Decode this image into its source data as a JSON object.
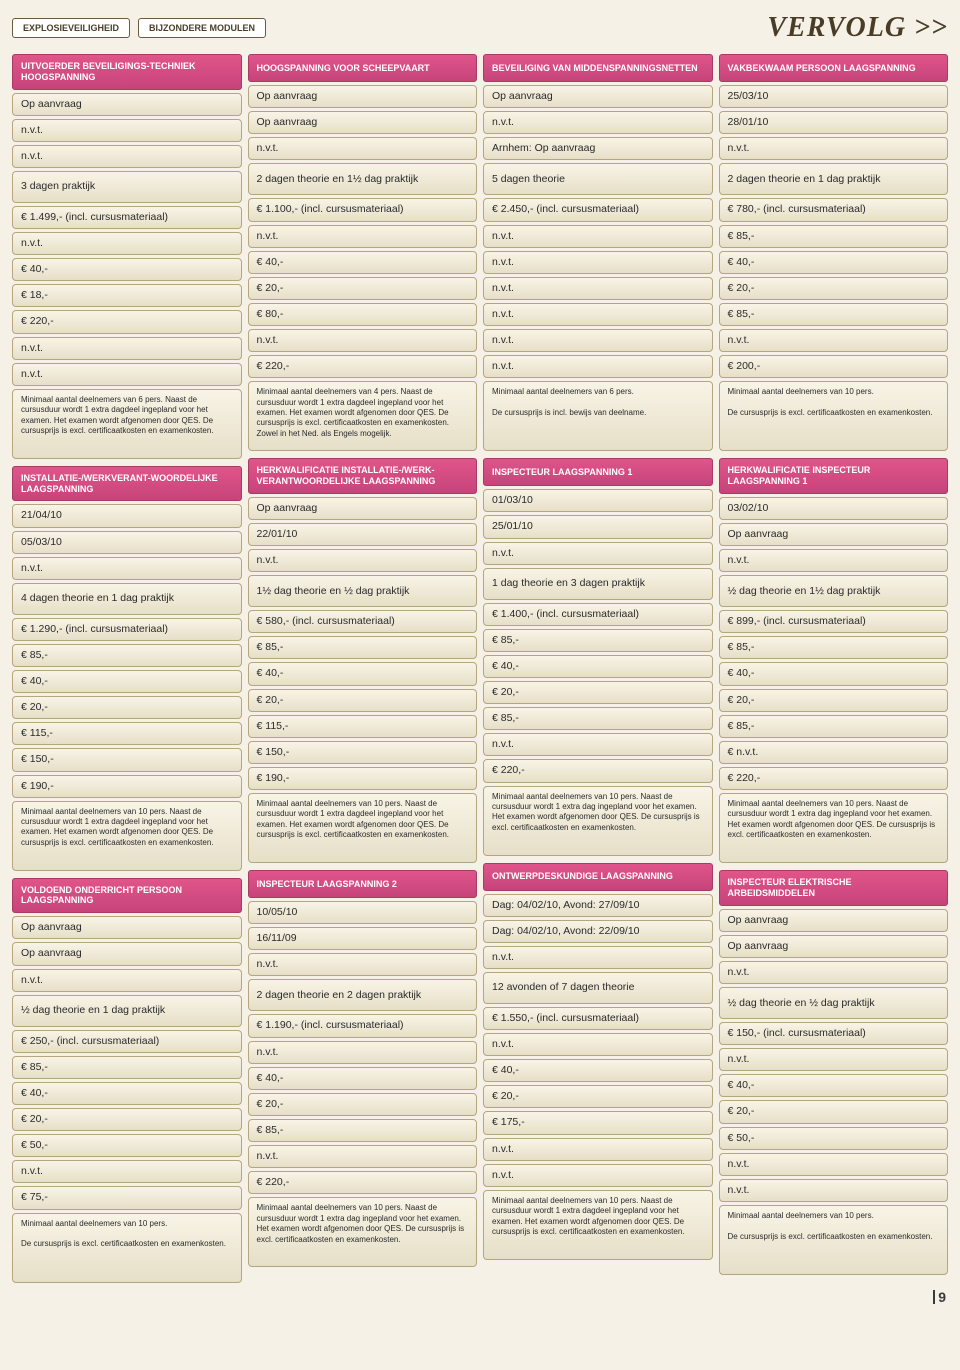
{
  "top": {
    "label1": "EXPLOSIEVEILIGHEID",
    "label2": "BIJZONDERE MODULEN",
    "vervolg": "VERVOLG >>"
  },
  "page_number": "9",
  "columns": [
    {
      "blocks": [
        {
          "header": "UITVOERDER BEVEILIGINGS-TECHNIEK HOOGSPANNING",
          "rows": [
            {
              "t": "Op aanvraag"
            },
            {
              "t": "n.v.t."
            },
            {
              "t": "n.v.t."
            },
            {
              "t": "3 dagen praktijk",
              "tall": true
            },
            {
              "t": "€ 1.499,- (incl. cursusmateriaal)"
            },
            {
              "t": "n.v.t."
            },
            {
              "t": "€ 40,-"
            },
            {
              "t": "€ 18,-"
            },
            {
              "t": "€ 220,-"
            },
            {
              "t": "n.v.t."
            },
            {
              "t": "n.v.t."
            },
            {
              "t": "Minimaal aantal deelnemers van 6 pers. Naast de cursusduur wordt 1 extra dagdeel ingepland voor het examen. Het examen wordt afgenomen door QES. De cursusprijs is excl. certificaatkosten en examenkosten.",
              "note": true
            }
          ]
        },
        {
          "header": "INSTALLATIE-/WERKVERANT-WOORDELIJKE LAAGSPANNING",
          "rows": [
            {
              "t": "21/04/10"
            },
            {
              "t": "05/03/10"
            },
            {
              "t": "n.v.t."
            },
            {
              "t": "4 dagen theorie en 1 dag praktijk",
              "tall": true
            },
            {
              "t": "€ 1.290,- (incl. cursusmateriaal)"
            },
            {
              "t": "€ 85,-"
            },
            {
              "t": "€ 40,-"
            },
            {
              "t": "€ 20,-"
            },
            {
              "t": "€ 115,-"
            },
            {
              "t": "€ 150,-"
            },
            {
              "t": "€ 190,-"
            },
            {
              "t": "Minimaal aantal deelnemers van 10 pers. Naast de cursusduur wordt 1 extra dagdeel ingepland voor het examen. Het examen wordt afgenomen door QES. De cursusprijs is excl. certificaatkosten en examenkosten.",
              "note": true
            }
          ]
        },
        {
          "header": "VOLDOEND ONDERRICHT PERSOON LAAGSPANNING",
          "rows": [
            {
              "t": "Op aanvraag"
            },
            {
              "t": "Op aanvraag"
            },
            {
              "t": "n.v.t."
            },
            {
              "t": "½ dag theorie en 1 dag praktijk",
              "tall": true
            },
            {
              "t": "€ 250,- (incl. cursusmateriaal)"
            },
            {
              "t": "€ 85,-"
            },
            {
              "t": "€ 40,-"
            },
            {
              "t": "€ 20,-"
            },
            {
              "t": "€ 50,-"
            },
            {
              "t": "n.v.t."
            },
            {
              "t": "€ 75,-"
            },
            {
              "t": "Minimaal aantal deelnemers van 10 pers.\n\nDe cursusprijs is excl. certificaatkosten en examenkosten.",
              "note": true
            }
          ]
        }
      ]
    },
    {
      "blocks": [
        {
          "header": "HOOGSPANNING VOOR SCHEEPVAART",
          "rows": [
            {
              "t": "Op aanvraag"
            },
            {
              "t": "Op aanvraag"
            },
            {
              "t": "n.v.t."
            },
            {
              "t": "2 dagen theorie en 1½ dag praktijk",
              "tall": true
            },
            {
              "t": "€ 1.100,- (incl. cursusmateriaal)"
            },
            {
              "t": "n.v.t."
            },
            {
              "t": "€ 40,-"
            },
            {
              "t": "€ 20,-"
            },
            {
              "t": "€ 80,-"
            },
            {
              "t": "n.v.t."
            },
            {
              "t": "€ 220,-"
            },
            {
              "t": "Minimaal aantal deelnemers van 4 pers. Naast de cursusduur wordt 1 extra dagdeel ingepland voor het examen. Het examen wordt afgenomen door QES. De cursusprijs is excl. certificaatkosten en examenkosten. Zowel in het Ned. als Engels mogelijk.",
              "note": true
            }
          ]
        },
        {
          "header": "HERKWALIFICATIE INSTALLATIE-/WERK-VERANTWOORDELIJKE LAAGSPANNING",
          "rows": [
            {
              "t": "Op aanvraag"
            },
            {
              "t": "22/01/10"
            },
            {
              "t": "n.v.t."
            },
            {
              "t": "1½ dag theorie en ½ dag praktijk",
              "tall": true
            },
            {
              "t": "€ 580,- (incl. cursusmateriaal)"
            },
            {
              "t": "€ 85,-"
            },
            {
              "t": "€ 40,-"
            },
            {
              "t": "€ 20,-"
            },
            {
              "t": "€ 115,-"
            },
            {
              "t": "€ 150,-"
            },
            {
              "t": "€ 190,-"
            },
            {
              "t": "Minimaal aantal deelnemers van 10 pers. Naast de cursusduur wordt 1 extra dagdeel ingepland voor het examen. Het examen wordt afgenomen door QES. De cursusprijs is excl. certificaatkosten en examenkosten.",
              "note": true
            }
          ]
        },
        {
          "header": "INSPECTEUR LAAGSPANNING 2",
          "rows": [
            {
              "t": "10/05/10"
            },
            {
              "t": "16/11/09"
            },
            {
              "t": "n.v.t."
            },
            {
              "t": "2 dagen theorie en 2 dagen praktijk",
              "tall": true
            },
            {
              "t": "€ 1.190,- (incl. cursusmateriaal)"
            },
            {
              "t": "n.v.t."
            },
            {
              "t": "€ 40,-"
            },
            {
              "t": "€ 20,-"
            },
            {
              "t": "€ 85,-"
            },
            {
              "t": "n.v.t."
            },
            {
              "t": "€ 220,-"
            },
            {
              "t": "Minimaal aantal deelnemers van 10 pers. Naast de cursusduur wordt 1 extra dag ingepland voor het examen. Het examen wordt afgenomen door QES. De cursusprijs is excl. certificaatkosten en examenkosten.",
              "note": true
            }
          ]
        }
      ]
    },
    {
      "blocks": [
        {
          "header": "BEVEILIGING VAN MIDDENSPANNINGSNETTEN",
          "rows": [
            {
              "t": "Op aanvraag"
            },
            {
              "t": "n.v.t."
            },
            {
              "t": "Arnhem: Op aanvraag"
            },
            {
              "t": "5 dagen theorie",
              "tall": true
            },
            {
              "t": "€ 2.450,- (incl. cursusmateriaal)"
            },
            {
              "t": "n.v.t."
            },
            {
              "t": "n.v.t."
            },
            {
              "t": "n.v.t."
            },
            {
              "t": "n.v.t."
            },
            {
              "t": "n.v.t."
            },
            {
              "t": "n.v.t."
            },
            {
              "t": "Minimaal aantal deelnemers van 6 pers.\n\nDe cursusprijs is incl. bewijs van deelname.",
              "note": true
            }
          ]
        },
        {
          "header": "INSPECTEUR LAAGSPANNING 1",
          "rows": [
            {
              "t": "01/03/10"
            },
            {
              "t": "25/01/10"
            },
            {
              "t": "n.v.t."
            },
            {
              "t": "1 dag theorie en 3 dagen praktijk",
              "tall": true
            },
            {
              "t": "€ 1.400,- (incl. cursusmateriaal)"
            },
            {
              "t": "€ 85,-"
            },
            {
              "t": "€ 40,-"
            },
            {
              "t": "€ 20,-"
            },
            {
              "t": "€ 85,-"
            },
            {
              "t": "n.v.t."
            },
            {
              "t": "€ 220,-"
            },
            {
              "t": "Minimaal aantal deelnemers van 10 pers. Naast de cursusduur wordt 1 extra dag ingepland voor het examen. Het examen wordt afgenomen door QES. De cursusprijs is excl. certificaatkosten en examenkosten.",
              "note": true
            }
          ]
        },
        {
          "header": "ONTWERPDESKUNDIGE LAAGSPANNING",
          "rows": [
            {
              "t": "Dag: 04/02/10, Avond: 27/09/10"
            },
            {
              "t": "Dag: 04/02/10, Avond: 22/09/10"
            },
            {
              "t": "n.v.t."
            },
            {
              "t": "12 avonden of 7 dagen theorie",
              "tall": true
            },
            {
              "t": "€ 1.550,- (incl. cursusmateriaal)"
            },
            {
              "t": "n.v.t."
            },
            {
              "t": "€ 40,-"
            },
            {
              "t": "€ 20,-"
            },
            {
              "t": "€ 175,-"
            },
            {
              "t": "n.v.t."
            },
            {
              "t": "n.v.t."
            },
            {
              "t": "Minimaal aantal deelnemers van 10 pers. Naast de cursusduur wordt 1 extra dagdeel ingepland voor het examen. Het examen wordt afgenomen door QES. De cursusprijs is excl. certificaatkosten en examenkosten.",
              "note": true
            }
          ]
        }
      ]
    },
    {
      "blocks": [
        {
          "header": "VAKBEKWAAM PERSOON LAAGSPANNING",
          "rows": [
            {
              "t": "25/03/10"
            },
            {
              "t": "28/01/10"
            },
            {
              "t": "n.v.t."
            },
            {
              "t": "2 dagen theorie en 1 dag praktijk",
              "tall": true
            },
            {
              "t": "€ 780,- (incl. cursusmateriaal)"
            },
            {
              "t": "€ 85,-"
            },
            {
              "t": "€ 40,-"
            },
            {
              "t": "€ 20,-"
            },
            {
              "t": "€ 85,-"
            },
            {
              "t": "n.v.t."
            },
            {
              "t": "€ 200,-"
            },
            {
              "t": "Minimaal aantal deelnemers van 10 pers.\n\nDe cursusprijs is excl. certificaatkosten en examenkosten.",
              "note": true
            }
          ]
        },
        {
          "header": "HERKWALIFICATIE INSPECTEUR LAAGSPANNING 1",
          "rows": [
            {
              "t": "03/02/10"
            },
            {
              "t": "Op aanvraag"
            },
            {
              "t": "n.v.t."
            },
            {
              "t": "½ dag theorie en 1½ dag praktijk",
              "tall": true
            },
            {
              "t": "€ 899,- (incl. cursusmateriaal)"
            },
            {
              "t": "€ 85,-"
            },
            {
              "t": "€ 40,-"
            },
            {
              "t": "€ 20,-"
            },
            {
              "t": "€ 85,-"
            },
            {
              "t": "€ n.v.t."
            },
            {
              "t": "€ 220,-"
            },
            {
              "t": "Minimaal aantal deelnemers van 10 pers. Naast de cursusduur wordt 1 extra dag ingepland voor het examen. Het examen wordt afgenomen door QES. De cursusprijs is excl. certificaatkosten en examenkosten.",
              "note": true
            }
          ]
        },
        {
          "header": "INSPECTEUR ELEKTRISCHE ARBEIDSMIDDELEN",
          "rows": [
            {
              "t": "Op aanvraag"
            },
            {
              "t": "Op aanvraag"
            },
            {
              "t": "n.v.t."
            },
            {
              "t": "½ dag theorie en ½ dag praktijk",
              "tall": true
            },
            {
              "t": "€ 150,- (incl. cursusmateriaal)"
            },
            {
              "t": "n.v.t."
            },
            {
              "t": "€ 40,-"
            },
            {
              "t": "€ 20,-"
            },
            {
              "t": "€ 50,-"
            },
            {
              "t": "n.v.t."
            },
            {
              "t": "n.v.t."
            },
            {
              "t": "Minimaal aantal deelnemers van 10 pers.\n\nDe cursusprijs is excl. certificaatkosten en examenkosten.",
              "note": true
            }
          ]
        }
      ]
    }
  ]
}
